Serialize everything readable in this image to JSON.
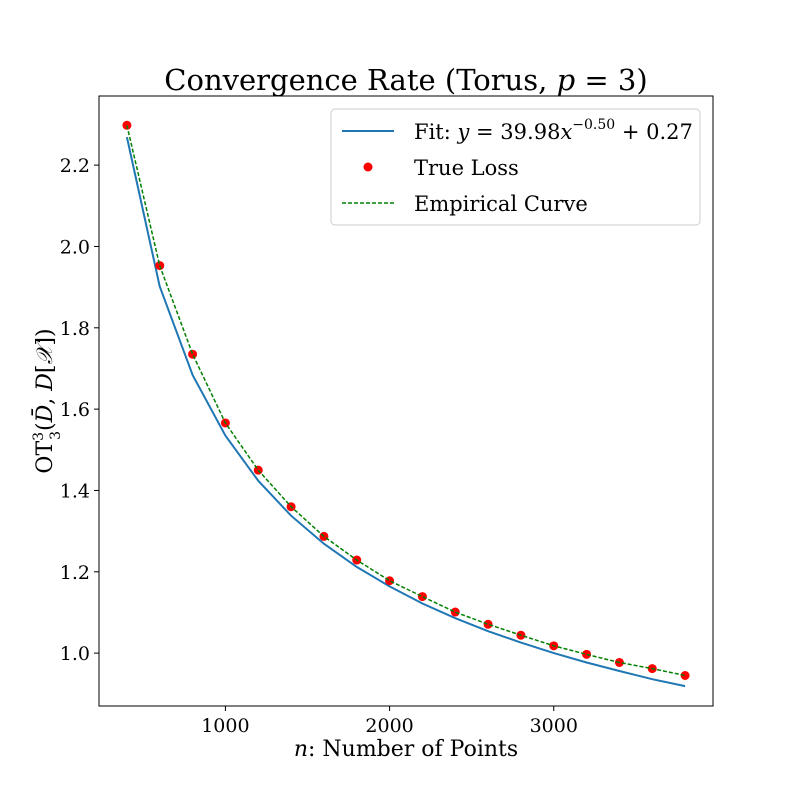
{
  "chart_data": {
    "type": "line",
    "title": "Convergence Rate (Torus, p = 3)",
    "xlabel": "n: Number of Points",
    "ylabel": "OT_3^3(D̄, D[𝒳])",
    "xlim": [
      230,
      3970
    ],
    "ylim": [
      0.87,
      2.37
    ],
    "xticks": [
      1000,
      2000,
      3000
    ],
    "yticks": [
      1.0,
      1.2,
      1.4,
      1.6,
      1.8,
      2.0,
      2.2
    ],
    "x": [
      400,
      600,
      800,
      1000,
      1200,
      1400,
      1600,
      1800,
      2000,
      2200,
      2400,
      2600,
      2800,
      3000,
      3200,
      3400,
      3600,
      3800
    ],
    "series": [
      {
        "name": "Fit: y = 39.98x^-0.50 + 0.27",
        "kind": "line",
        "color": "#1f77b4",
        "values": [
          2.269,
          1.902,
          1.684,
          1.535,
          1.424,
          1.338,
          1.269,
          1.212,
          1.164,
          1.122,
          1.086,
          1.054,
          1.026,
          1.0,
          0.977,
          0.956,
          0.936,
          0.919
        ]
      },
      {
        "name": "True Loss",
        "kind": "scatter",
        "color": "#ff0000",
        "values": [
          2.298,
          1.953,
          1.735,
          1.566,
          1.45,
          1.36,
          1.287,
          1.229,
          1.178,
          1.139,
          1.101,
          1.071,
          1.044,
          1.018,
          0.997,
          0.977,
          0.962,
          0.945
        ]
      },
      {
        "name": "Empirical Curve",
        "kind": "dashed-line",
        "color": "#008000",
        "values": [
          2.298,
          1.953,
          1.735,
          1.566,
          1.45,
          1.36,
          1.287,
          1.229,
          1.178,
          1.139,
          1.101,
          1.071,
          1.044,
          1.018,
          0.997,
          0.977,
          0.962,
          0.945
        ]
      }
    ],
    "legend": {
      "position": "top-right",
      "entries": [
        "Fit: y = 39.98x^-0.50 + 0.27",
        "True Loss",
        "Empirical Curve"
      ]
    }
  }
}
